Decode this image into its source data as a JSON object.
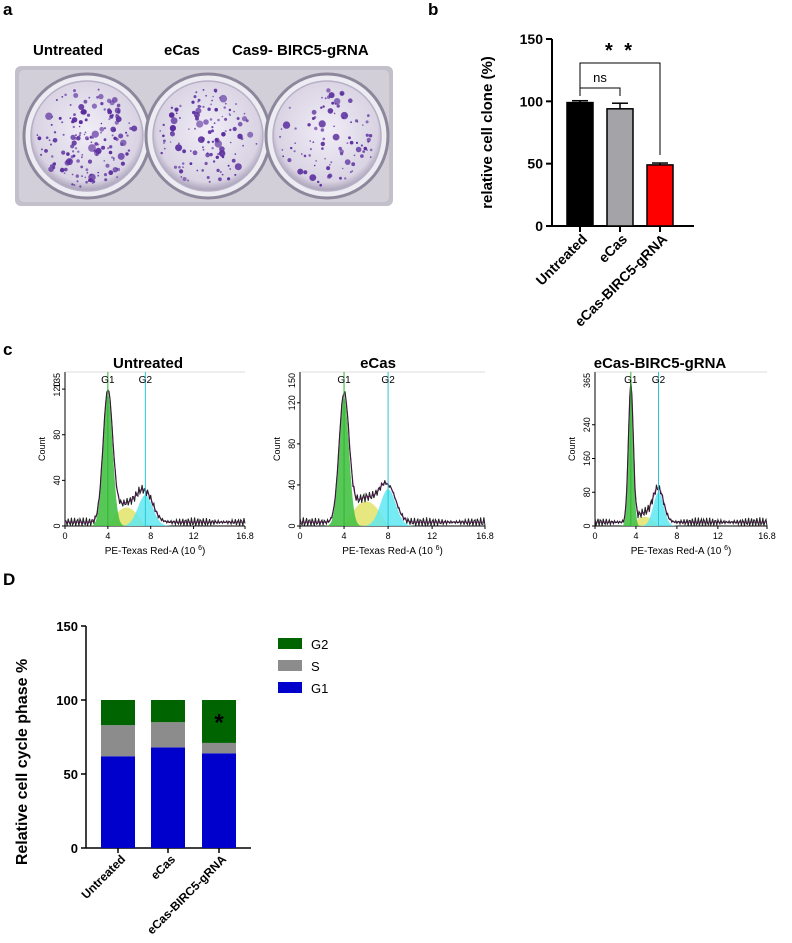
{
  "panels": {
    "a": {
      "letter": "a",
      "well_labels": [
        "Untreated",
        "eCas",
        "Cas9- BIRC5-gRNA"
      ]
    },
    "b": {
      "letter": "b"
    },
    "c": {
      "letter": "c",
      "histograms": [
        {
          "title": "Untreated",
          "y_ticks": [
            "0",
            "40",
            "80",
            "120"
          ],
          "y_max_label": "135",
          "y_max": 135
        },
        {
          "title": "eCas",
          "y_ticks": [
            "0",
            "40",
            "80",
            "120"
          ],
          "y_max_label": "150",
          "y_max": 150
        },
        {
          "title": "eCas-BIRC5-gRNA",
          "y_ticks": [
            "0",
            "80",
            "160",
            "240"
          ],
          "y_max_label": "365",
          "y_max": 365
        }
      ],
      "x_ticks": [
        "0",
        "4",
        "8",
        "12",
        "16.8"
      ],
      "x_label": "PE-Texas Red-A",
      "x_unit": "(10 ",
      "x_unit_exp": "6",
      "x_unit_close": ")",
      "y_label": "Count",
      "gate_g1": "G1",
      "gate_g2": "G2"
    },
    "d": {
      "letter": "D"
    }
  },
  "chart_data": [
    {
      "id": "panel-b",
      "type": "bar",
      "categories": [
        "Untreated",
        "eCas",
        "eCas-BIRC5-gRNA"
      ],
      "values": [
        99,
        94,
        49
      ],
      "errors": [
        1.5,
        4.5,
        1.5
      ],
      "colors": [
        "#000000",
        "#a3a3a8",
        "#ff0000"
      ],
      "ylabel": "relative cell clone (%)",
      "ylim": [
        0,
        150
      ],
      "yticks": [
        0,
        50,
        100,
        150
      ],
      "annotations": [
        {
          "text": "ns",
          "between": [
            0,
            1
          ]
        },
        {
          "text": "* *",
          "between": [
            0,
            2
          ]
        }
      ]
    },
    {
      "id": "panel-d",
      "type": "bar",
      "stacked": true,
      "categories": [
        "Untreated",
        "eCas",
        "eCas-BIRC5-gRNA"
      ],
      "series": [
        {
          "name": "G1",
          "color": "#0000cc",
          "values": [
            62,
            68,
            64
          ]
        },
        {
          "name": "S",
          "color": "#8c8c8c",
          "values": [
            21,
            17,
            7
          ]
        },
        {
          "name": "G2",
          "color": "#006400",
          "values": [
            17,
            15,
            29
          ]
        }
      ],
      "legend_order": [
        "G2",
        "S",
        "G1"
      ],
      "ylabel": "Relative cell cycle phase %",
      "ylim": [
        0,
        150
      ],
      "yticks": [
        0,
        50,
        100,
        150
      ],
      "annotations": [
        {
          "text": "*",
          "category": 2
        }
      ]
    }
  ]
}
